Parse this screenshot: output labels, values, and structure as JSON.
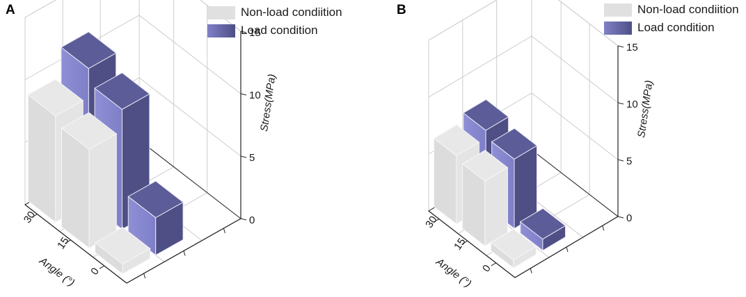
{
  "chart_data": [
    {
      "type": "bar3d",
      "panel_label": "A",
      "categories": [
        "0",
        "15",
        "30"
      ],
      "series": [
        {
          "name": "Non-load condiition",
          "values": [
            0.8,
            7.9,
            8.5
          ]
        },
        {
          "name": "Load condition",
          "values": [
            3.0,
            9.6,
            10.8
          ]
        }
      ],
      "xlabel": "Angle (°)",
      "zlabel": "Stress(MPa)",
      "z_ticks": [
        "0",
        "5",
        "10",
        "15"
      ],
      "zlim": [
        0,
        15
      ],
      "legend_position": "top-right"
    },
    {
      "type": "bar3d",
      "panel_label": "B",
      "categories": [
        "0",
        "15",
        "30"
      ],
      "series": [
        {
          "name": "Non-load condiition",
          "values": [
            0.7,
            5.7,
            6.0
          ]
        },
        {
          "name": "Load condition",
          "values": [
            1.0,
            6.1,
            6.7
          ]
        }
      ],
      "xlabel": "Angle (°)",
      "zlabel": "Stress(MPa)",
      "z_ticks": [
        "0",
        "5",
        "10",
        "15"
      ],
      "zlim": [
        0,
        15
      ],
      "legend_position": "top-right"
    }
  ],
  "colors": {
    "non_load": "#e0e0e0",
    "load_front": "#7f7fc8",
    "load_side": "#4f4f86",
    "load_top": "#5c5c98",
    "axis": "#222222",
    "grid": "#cccccc"
  }
}
